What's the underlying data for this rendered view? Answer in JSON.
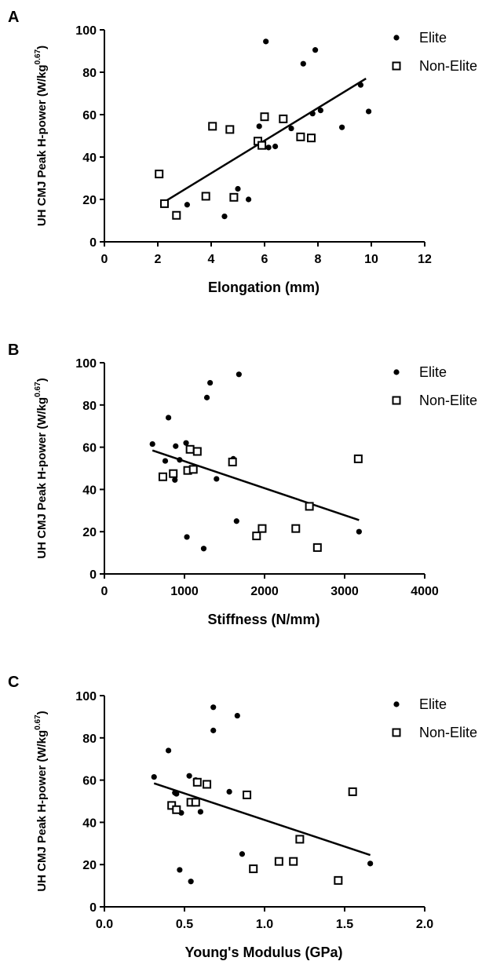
{
  "chart_data": [
    {
      "panel": "A",
      "type": "scatter",
      "ylabel_main": "UH CMJ Peak H-power (W/kg",
      "ylabel_sup": "0.67",
      "ylabel_end": ")",
      "xlabel": "Elongation (mm)",
      "xlim": [
        0,
        12
      ],
      "ylim": [
        0,
        100
      ],
      "xticks": [
        0,
        2,
        4,
        6,
        8,
        10,
        12
      ],
      "yticks": [
        0,
        20,
        40,
        60,
        80,
        100
      ],
      "legend": "top-right",
      "series": [
        {
          "name": "Elite",
          "marker": "filled-circle",
          "points": [
            [
              6.05,
              94.5
            ],
            [
              7.9,
              90.5
            ],
            [
              7.45,
              84
            ],
            [
              9.6,
              74
            ],
            [
              9.9,
              61.5
            ],
            [
              8.1,
              62
            ],
            [
              7.8,
              60.5
            ],
            [
              5.8,
              54.5
            ],
            [
              7.0,
              53.5
            ],
            [
              8.9,
              54
            ],
            [
              6.15,
              44.5
            ],
            [
              6.4,
              45
            ],
            [
              5.0,
              25
            ],
            [
              5.4,
              20
            ],
            [
              3.1,
              17.5
            ],
            [
              4.5,
              12
            ]
          ]
        },
        {
          "name": "Non-Elite",
          "marker": "open-square",
          "points": [
            [
              4.05,
              54.5
            ],
            [
              4.7,
              53
            ],
            [
              6.0,
              59
            ],
            [
              6.7,
              58
            ],
            [
              5.75,
              47.5
            ],
            [
              5.9,
              45.5
            ],
            [
              7.35,
              49.5
            ],
            [
              7.75,
              49
            ],
            [
              2.05,
              32
            ],
            [
              2.25,
              18
            ],
            [
              2.7,
              12.5
            ],
            [
              3.8,
              21.5
            ],
            [
              4.85,
              21
            ]
          ]
        }
      ],
      "fit_line": [
        [
          2.2,
          18.5
        ],
        [
          9.8,
          77
        ]
      ]
    },
    {
      "panel": "B",
      "type": "scatter",
      "ylabel_main": "UH CMJ Peak H-power (W/kg",
      "ylabel_sup": "0.67",
      "ylabel_end": ")",
      "xlabel": "Stiffness (N/mm)",
      "xlim": [
        0,
        4000
      ],
      "ylim": [
        0,
        100
      ],
      "xticks": [
        0,
        1000,
        2000,
        3000,
        4000
      ],
      "yticks": [
        0,
        20,
        40,
        60,
        80,
        100
      ],
      "legend": "top-right",
      "series": [
        {
          "name": "Elite",
          "marker": "filled-circle",
          "points": [
            [
              1680,
              94.5
            ],
            [
              1320,
              90.5
            ],
            [
              1280,
              83.5
            ],
            [
              800,
              74
            ],
            [
              600,
              61.5
            ],
            [
              1020,
              62
            ],
            [
              890,
              60.5
            ],
            [
              940,
              54
            ],
            [
              760,
              53.5
            ],
            [
              1610,
              54.5
            ],
            [
              880,
              44.5
            ],
            [
              1400,
              45
            ],
            [
              1650,
              25
            ],
            [
              1030,
              17.5
            ],
            [
              1240,
              12
            ],
            [
              3180,
              20
            ]
          ]
        },
        {
          "name": "Non-Elite",
          "marker": "open-square",
          "points": [
            [
              1070,
              59
            ],
            [
              1160,
              58
            ],
            [
              1600,
              53
            ],
            [
              3170,
              54.5
            ],
            [
              730,
              46
            ],
            [
              860,
              47.5
            ],
            [
              1040,
              49
            ],
            [
              1110,
              49.5
            ],
            [
              2560,
              32
            ],
            [
              1900,
              18
            ],
            [
              1970,
              21.5
            ],
            [
              2390,
              21.5
            ],
            [
              2660,
              12.5
            ]
          ]
        }
      ],
      "fit_line": [
        [
          600,
          58.5
        ],
        [
          3180,
          25.5
        ]
      ]
    },
    {
      "panel": "C",
      "type": "scatter",
      "ylabel_main": "UH CMJ Peak H-power (W/kg",
      "ylabel_sup": "0.67",
      "ylabel_end": ")",
      "xlabel": "Young's Modulus (GPa)",
      "xlim": [
        0.0,
        2.0
      ],
      "ylim": [
        0,
        100
      ],
      "xticks": [
        "0.0",
        "0.5",
        "1.0",
        "1.5",
        "2.0"
      ],
      "yticks": [
        0,
        20,
        40,
        60,
        80,
        100
      ],
      "legend": "top-right",
      "series": [
        {
          "name": "Elite",
          "marker": "filled-circle",
          "points": [
            [
              0.68,
              94.5
            ],
            [
              0.83,
              90.5
            ],
            [
              0.68,
              83.5
            ],
            [
              0.4,
              74
            ],
            [
              0.31,
              61.5
            ],
            [
              0.53,
              62
            ],
            [
              0.57,
              60
            ],
            [
              0.44,
              54
            ],
            [
              0.45,
              53.5
            ],
            [
              0.78,
              54.5
            ],
            [
              0.48,
              44.5
            ],
            [
              0.6,
              45
            ],
            [
              0.86,
              25
            ],
            [
              0.47,
              17.5
            ],
            [
              0.54,
              12
            ],
            [
              1.66,
              20.5
            ]
          ]
        },
        {
          "name": "Non-Elite",
          "marker": "open-square",
          "points": [
            [
              0.58,
              59
            ],
            [
              0.64,
              58
            ],
            [
              0.89,
              53
            ],
            [
              1.55,
              54.5
            ],
            [
              0.42,
              48
            ],
            [
              0.45,
              46
            ],
            [
              0.54,
              49.5
            ],
            [
              0.57,
              49.5
            ],
            [
              1.22,
              32
            ],
            [
              0.93,
              18
            ],
            [
              1.09,
              21.5
            ],
            [
              1.18,
              21.5
            ],
            [
              1.46,
              12.5
            ]
          ]
        }
      ],
      "fit_line": [
        [
          0.31,
          58.5
        ],
        [
          1.66,
          24.5
        ]
      ]
    }
  ]
}
